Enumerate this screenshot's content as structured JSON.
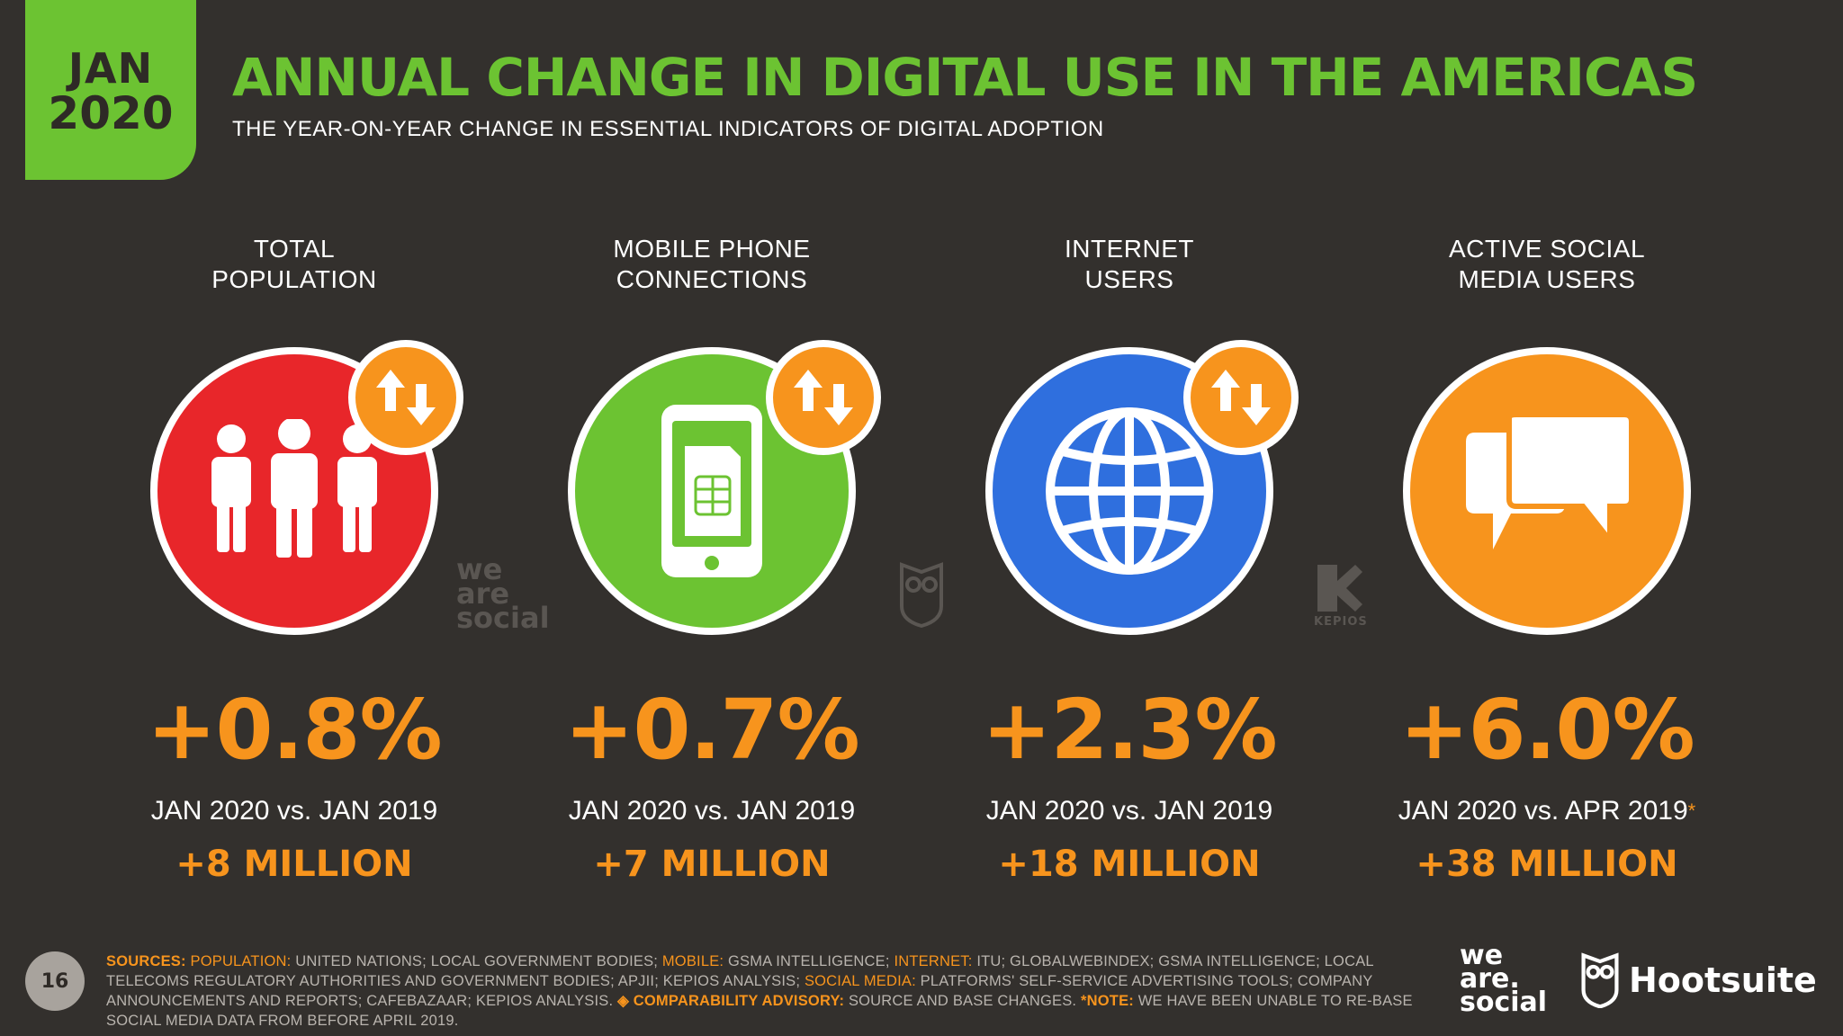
{
  "badge": {
    "month": "JAN",
    "year": "2020"
  },
  "header": {
    "title": "ANNUAL CHANGE IN DIGITAL USE IN THE AMERICAS",
    "subtitle": "THE YEAR-ON-YEAR CHANGE IN ESSENTIAL INDICATORS OF DIGITAL ADOPTION"
  },
  "colors": {
    "accent_green": "#6cc332",
    "accent_orange": "#f7941d",
    "population_red": "#e8262a",
    "mobile_green": "#6cc332",
    "internet_blue": "#2f6fde",
    "social_orange": "#f7941d",
    "background": "#33302d"
  },
  "panels": [
    {
      "label_line1": "TOTAL",
      "label_line2": "POPULATION",
      "icon": "people-icon",
      "change": "+0.8%",
      "period": "JAN 2020 vs. JAN 2019",
      "asterisk": "",
      "delta": "+8 MILLION"
    },
    {
      "label_line1": "MOBILE PHONE",
      "label_line2": "CONNECTIONS",
      "icon": "mobile-phone-icon",
      "change": "+0.7%",
      "period": "JAN 2020 vs. JAN 2019",
      "asterisk": "",
      "delta": "+7 MILLION"
    },
    {
      "label_line1": "INTERNET",
      "label_line2": "USERS",
      "icon": "globe-icon",
      "change": "+2.3%",
      "period": "JAN 2020 vs. JAN 2019",
      "asterisk": "",
      "delta": "+18 MILLION"
    },
    {
      "label_line1": "ACTIVE SOCIAL",
      "label_line2": "MEDIA USERS",
      "icon": "chat-bubbles-icon",
      "change": "+6.0%",
      "period": "JAN 2020 vs. APR 2019",
      "asterisk": "*",
      "delta": "+38 MILLION"
    }
  ],
  "watermarks": {
    "was_line1": "we",
    "was_line2": "are",
    "was_line3": "social",
    "kepios": "KEPIOS"
  },
  "footer": {
    "page_number": "16",
    "sources_label": "SOURCES:",
    "population_label": "POPULATION:",
    "population_text": "UNITED NATIONS; LOCAL GOVERNMENT BODIES;",
    "mobile_label": "MOBILE:",
    "mobile_text": "GSMA INTELLIGENCE;",
    "internet_label": "INTERNET:",
    "internet_text": "ITU; GLOBALWEBINDEX; GSMA INTELLIGENCE; LOCAL TELECOMS REGULATORY AUTHORITIES AND GOVERNMENT BODIES; APJII; KEPIOS ANALYSIS;",
    "social_label": "SOCIAL MEDIA:",
    "social_text": "PLATFORMS' SELF-SERVICE ADVERTISING TOOLS; COMPANY ANNOUNCEMENTS AND REPORTS; CAFEBAZAAR; KEPIOS ANALYSIS.",
    "advisory_label": "◈ COMPARABILITY ADVISORY:",
    "advisory_text": "SOURCE AND BASE CHANGES.",
    "note_label": "*NOTE:",
    "note_text": "WE HAVE BEEN UNABLE TO RE-BASE SOCIAL MEDIA DATA FROM BEFORE APRIL 2019.",
    "logo_was_line1": "we",
    "logo_was_line2": "are.",
    "logo_was_line3": "social",
    "logo_hootsuite": "Hootsuite"
  }
}
